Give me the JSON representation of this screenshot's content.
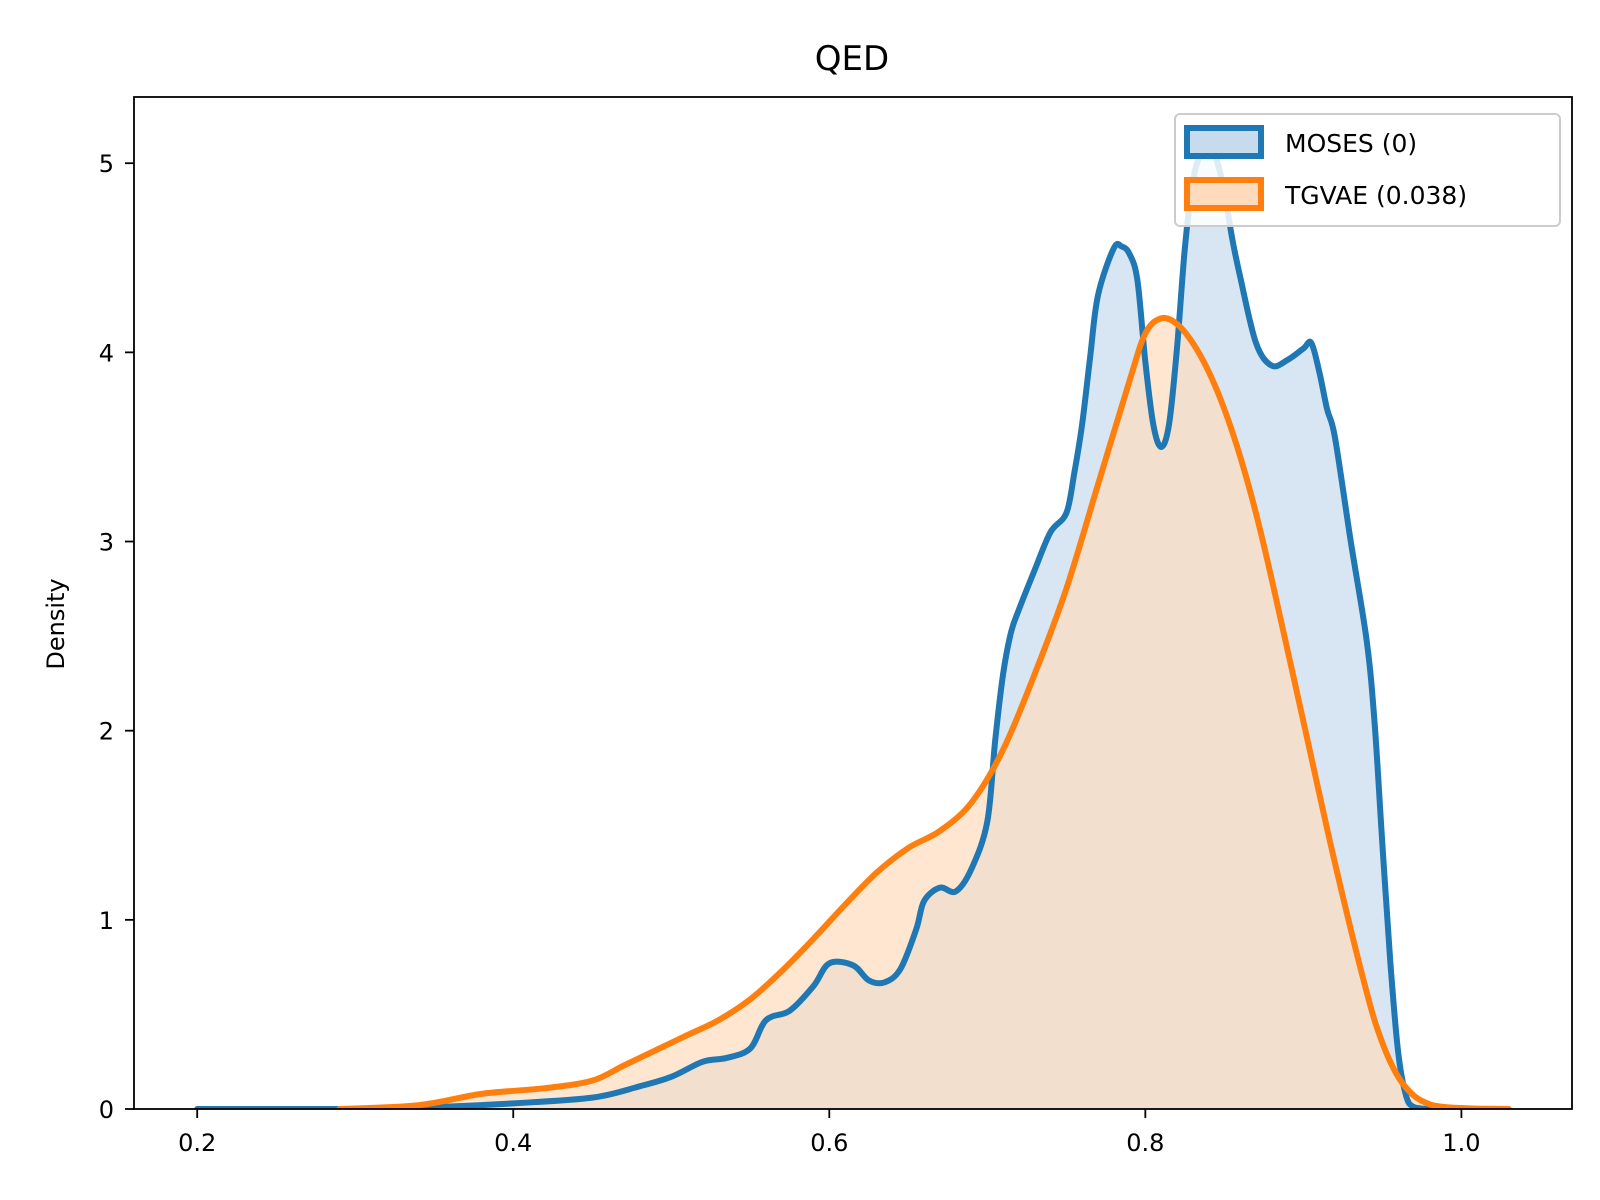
{
  "chart_data": {
    "type": "area",
    "title": "QED",
    "xlabel": "",
    "ylabel": "Density",
    "xlim": [
      0.16,
      1.07
    ],
    "ylim": [
      0,
      5.35
    ],
    "xticks": [
      0.2,
      0.4,
      0.6,
      0.8,
      1.0
    ],
    "xtick_labels": [
      "0.2",
      "0.4",
      "0.6",
      "0.8",
      "1.0"
    ],
    "yticks": [
      0,
      1,
      2,
      3,
      4,
      5
    ],
    "ytick_labels": [
      "0",
      "1",
      "2",
      "3",
      "4",
      "5"
    ],
    "grid": false,
    "legend_position": "top-right",
    "series": [
      {
        "name": "MOSES (0)",
        "color": "#1f77b4",
        "fill": "#c6dbed",
        "x": [
          0.2,
          0.3,
          0.35,
          0.4,
          0.45,
          0.48,
          0.5,
          0.52,
          0.535,
          0.55,
          0.56,
          0.575,
          0.59,
          0.6,
          0.615,
          0.625,
          0.635,
          0.645,
          0.655,
          0.66,
          0.67,
          0.68,
          0.69,
          0.7,
          0.705,
          0.71,
          0.715,
          0.72,
          0.73,
          0.74,
          0.75,
          0.755,
          0.76,
          0.765,
          0.77,
          0.78,
          0.785,
          0.79,
          0.795,
          0.8,
          0.805,
          0.81,
          0.815,
          0.82,
          0.825,
          0.83,
          0.835,
          0.84,
          0.845,
          0.85,
          0.855,
          0.86,
          0.87,
          0.88,
          0.89,
          0.9,
          0.905,
          0.91,
          0.915,
          0.92,
          0.93,
          0.94,
          0.945,
          0.95,
          0.955,
          0.96,
          0.965,
          0.97,
          0.98
        ],
        "y": [
          0.0,
          0.0,
          0.01,
          0.03,
          0.06,
          0.12,
          0.17,
          0.25,
          0.27,
          0.32,
          0.47,
          0.52,
          0.65,
          0.77,
          0.76,
          0.68,
          0.67,
          0.74,
          0.95,
          1.1,
          1.17,
          1.15,
          1.27,
          1.52,
          1.95,
          2.3,
          2.52,
          2.64,
          2.85,
          3.05,
          3.15,
          3.36,
          3.62,
          3.97,
          4.3,
          4.55,
          4.56,
          4.52,
          4.38,
          3.95,
          3.62,
          3.5,
          3.62,
          4.02,
          4.55,
          4.9,
          5.05,
          5.1,
          5.02,
          4.85,
          4.6,
          4.4,
          4.05,
          3.93,
          3.96,
          4.02,
          4.05,
          3.9,
          3.7,
          3.55,
          3.0,
          2.48,
          2.05,
          1.4,
          0.78,
          0.3,
          0.07,
          0.01,
          0.0
        ]
      },
      {
        "name": "TGVAE (0.038)",
        "color": "#ff7f0e",
        "fill": "#ffdbbe",
        "x": [
          0.29,
          0.34,
          0.38,
          0.42,
          0.45,
          0.47,
          0.49,
          0.51,
          0.53,
          0.55,
          0.57,
          0.59,
          0.61,
          0.63,
          0.65,
          0.67,
          0.69,
          0.71,
          0.73,
          0.75,
          0.77,
          0.79,
          0.8,
          0.81,
          0.82,
          0.83,
          0.84,
          0.85,
          0.86,
          0.87,
          0.88,
          0.9,
          0.92,
          0.94,
          0.95,
          0.96,
          0.97,
          0.98,
          0.99,
          1.0,
          1.01,
          1.02,
          1.03
        ],
        "y": [
          0.0,
          0.02,
          0.08,
          0.11,
          0.15,
          0.23,
          0.31,
          0.39,
          0.47,
          0.58,
          0.73,
          0.9,
          1.08,
          1.25,
          1.38,
          1.47,
          1.62,
          1.9,
          2.3,
          2.75,
          3.3,
          3.85,
          4.1,
          4.18,
          4.15,
          4.05,
          3.9,
          3.7,
          3.45,
          3.15,
          2.8,
          2.05,
          1.3,
          0.62,
          0.35,
          0.17,
          0.07,
          0.025,
          0.01,
          0.005,
          0.002,
          0.001,
          0.0
        ]
      }
    ]
  }
}
